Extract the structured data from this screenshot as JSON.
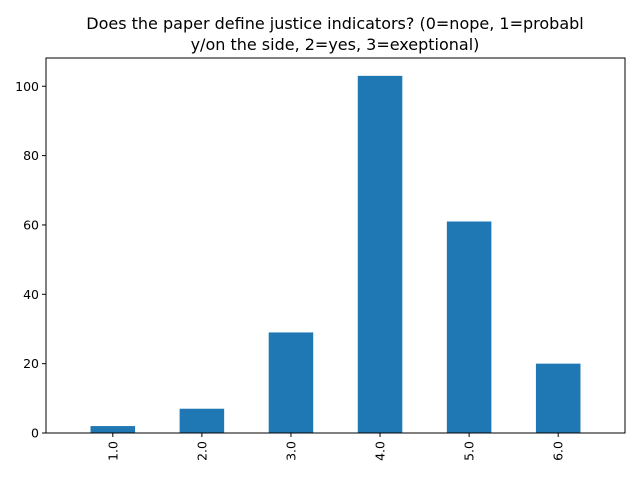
{
  "chart_data": {
    "type": "bar",
    "title_lines": [
      "Does the paper define justice indicators? (0=nope, 1=probabl",
      "y/on the side, 2=yes, 3=exeptional)"
    ],
    "categories": [
      "1.0",
      "2.0",
      "3.0",
      "4.0",
      "5.0",
      "6.0"
    ],
    "values": [
      2,
      7,
      29,
      103,
      61,
      20
    ],
    "xlabel": "",
    "ylabel": "",
    "ylim": [
      0,
      108.15
    ],
    "yticks": [
      0,
      20,
      40,
      60,
      80,
      100
    ],
    "ytick_labels": [
      "0",
      "20",
      "40",
      "60",
      "80",
      "100"
    ],
    "x_tick_rotation_deg": 90,
    "grid": false,
    "bar_color": "#1f77b4"
  }
}
